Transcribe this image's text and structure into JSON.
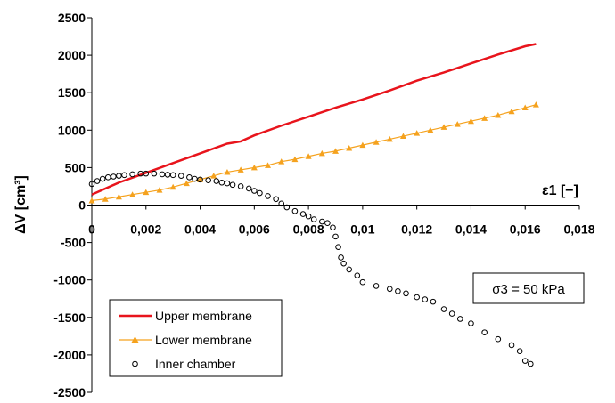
{
  "chart_data": {
    "type": "scatter",
    "xlabel": "ε1 [−]",
    "ylabel": "ΔV [cm³]",
    "xlim": [
      0,
      0.018
    ],
    "ylim": [
      -2500,
      2500
    ],
    "x_ticks": [
      0,
      0.002,
      0.004,
      0.006,
      0.008,
      0.01,
      0.012,
      0.014,
      0.016,
      0.018
    ],
    "x_tick_labels": [
      "0",
      "0,002",
      "0,004",
      "0,006",
      "0,008",
      "0,01",
      "0,012",
      "0,014",
      "0,016",
      "0,018"
    ],
    "y_ticks": [
      2500,
      2000,
      1500,
      1000,
      500,
      0,
      -500,
      -1000,
      -1500,
      -2000,
      -2500
    ],
    "y_tick_labels": [
      "2500",
      "2000",
      "1500",
      "1000",
      "500",
      "0",
      "-500",
      "-1000",
      "-1500",
      "-2000",
      "-2500"
    ],
    "grid": false,
    "legend_position": "bottom-left",
    "annotation": "σ3 = 50 kPa",
    "series": [
      {
        "name": "Upper membrane",
        "color": "#e8141c",
        "marker": "line",
        "x": [
          0,
          0.001,
          0.002,
          0.003,
          0.004,
          0.005,
          0.0055,
          0.006,
          0.007,
          0.008,
          0.009,
          0.01,
          0.011,
          0.012,
          0.013,
          0.014,
          0.015,
          0.016,
          0.0164
        ],
        "y": [
          140,
          300,
          430,
          560,
          690,
          820,
          850,
          930,
          1060,
          1180,
          1300,
          1410,
          1530,
          1660,
          1770,
          1890,
          2010,
          2120,
          2150
        ]
      },
      {
        "name": "Lower membrane",
        "color": "#f5a21e",
        "marker": "triangle",
        "x": [
          0,
          0.0005,
          0.001,
          0.0015,
          0.002,
          0.0025,
          0.003,
          0.0035,
          0.004,
          0.0045,
          0.005,
          0.0055,
          0.006,
          0.0065,
          0.007,
          0.0075,
          0.008,
          0.0085,
          0.009,
          0.0095,
          0.01,
          0.0105,
          0.011,
          0.0115,
          0.012,
          0.0125,
          0.013,
          0.0135,
          0.014,
          0.0145,
          0.015,
          0.0155,
          0.016,
          0.0164
        ],
        "y": [
          60,
          80,
          110,
          140,
          170,
          200,
          240,
          290,
          340,
          390,
          440,
          470,
          500,
          530,
          580,
          610,
          650,
          690,
          720,
          760,
          800,
          840,
          880,
          920,
          960,
          1000,
          1040,
          1080,
          1120,
          1160,
          1200,
          1250,
          1300,
          1340
        ]
      },
      {
        "name": "Inner chamber",
        "color": "#000000",
        "marker": "circle",
        "x": [
          0,
          0.0002,
          0.0004,
          0.0006,
          0.0008,
          0.001,
          0.0012,
          0.0015,
          0.0018,
          0.002,
          0.0023,
          0.0026,
          0.0028,
          0.003,
          0.0033,
          0.0036,
          0.0038,
          0.004,
          0.0043,
          0.0046,
          0.0048,
          0.005,
          0.0052,
          0.0055,
          0.0058,
          0.006,
          0.0062,
          0.0065,
          0.0068,
          0.007,
          0.0072,
          0.0075,
          0.0078,
          0.008,
          0.0082,
          0.0085,
          0.0087,
          0.0089,
          0.009,
          0.0091,
          0.0092,
          0.0093,
          0.0095,
          0.0098,
          0.01,
          0.0105,
          0.011,
          0.0113,
          0.0116,
          0.012,
          0.0123,
          0.0126,
          0.013,
          0.0133,
          0.0136,
          0.014,
          0.0145,
          0.015,
          0.0155,
          0.0158,
          0.016,
          0.0162
        ],
        "y": [
          280,
          320,
          350,
          370,
          380,
          390,
          400,
          410,
          420,
          420,
          420,
          410,
          405,
          400,
          390,
          370,
          350,
          340,
          330,
          320,
          300,
          290,
          270,
          250,
          220,
          190,
          160,
          120,
          80,
          20,
          -30,
          -80,
          -120,
          -150,
          -190,
          -220,
          -240,
          -300,
          -420,
          -560,
          -700,
          -780,
          -860,
          -940,
          -1030,
          -1080,
          -1120,
          -1150,
          -1180,
          -1230,
          -1260,
          -1290,
          -1390,
          -1450,
          -1520,
          -1580,
          -1700,
          -1790,
          -1870,
          -1950,
          -2080,
          -2120
        ]
      }
    ]
  }
}
